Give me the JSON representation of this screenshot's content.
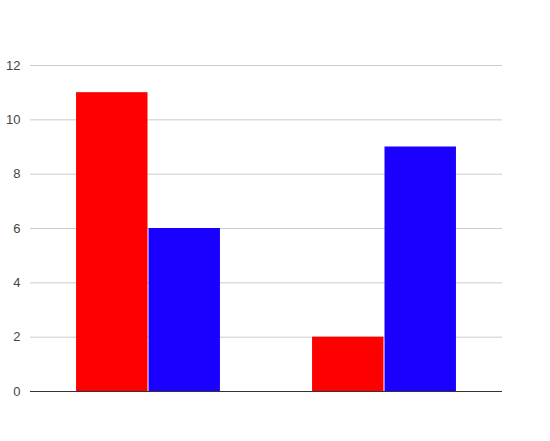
{
  "chart_data": {
    "type": "bar",
    "categories": [
      null,
      null
    ],
    "series": [
      {
        "color": "#ff0000",
        "values": [
          11,
          2
        ]
      },
      {
        "color": "#1a00ff",
        "values": [
          6,
          9
        ]
      }
    ],
    "ylim": [
      0,
      12
    ],
    "yticks": [
      0,
      2,
      4,
      6,
      8,
      10,
      12
    ],
    "grid": true
  }
}
